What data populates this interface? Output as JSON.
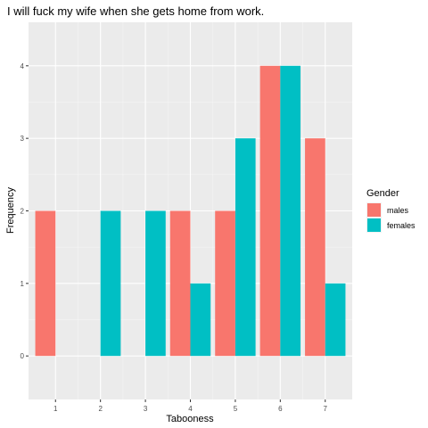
{
  "chart_data": {
    "type": "bar",
    "title": "I will fuck my wife when she gets home from work.",
    "xlabel": "Tabooness",
    "ylabel": "Frequency",
    "categories": [
      "1",
      "2",
      "3",
      "4",
      "5",
      "6",
      "7"
    ],
    "ylim": [
      -0.6,
      4.6
    ],
    "yticks": [
      0,
      1,
      2,
      3,
      4
    ],
    "grid": true,
    "legend": {
      "title": "Gender",
      "placement": "right"
    },
    "series": [
      {
        "name": "males",
        "color": "#F8766D",
        "values": [
          2,
          0,
          0,
          2,
          2,
          4,
          3
        ]
      },
      {
        "name": "females",
        "color": "#00BFC4",
        "values": [
          0,
          2,
          2,
          1,
          3,
          4,
          1
        ]
      }
    ]
  }
}
